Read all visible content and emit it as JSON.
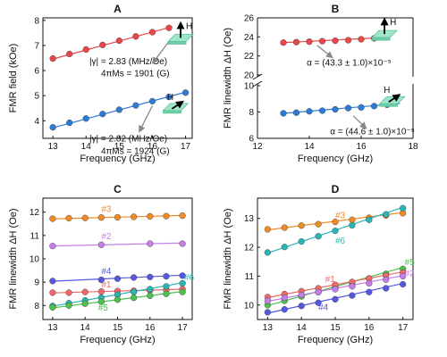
{
  "chart_data": [
    {
      "type": "line",
      "panel": "A",
      "title": "A",
      "xlabel": "Frequency (GHz)",
      "ylabel": "FMR field (kOe)",
      "xlim": [
        12.7,
        17.2
      ],
      "ylim": [
        3.3,
        8.1
      ],
      "xticks": [
        13,
        14,
        15,
        16,
        17
      ],
      "yticks": [
        4,
        5,
        6,
        7,
        8
      ],
      "grid": false,
      "series": [
        {
          "color": "#e8474a",
          "x": [
            13.0,
            13.5,
            14.0,
            14.5,
            15.0,
            15.5,
            16.0,
            16.5
          ],
          "y": [
            6.48,
            6.66,
            6.84,
            7.02,
            7.19,
            7.36,
            7.53,
            7.7
          ],
          "fit": [
            [
              13.0,
              6.46
            ],
            [
              16.6,
              7.75
            ]
          ]
        },
        {
          "color": "#2e7bd6",
          "x": [
            13.0,
            13.5,
            14.0,
            14.5,
            15.0,
            15.5,
            16.0,
            16.5,
            17.0
          ],
          "y": [
            3.74,
            3.92,
            4.09,
            4.27,
            4.44,
            4.61,
            4.78,
            4.95,
            5.12
          ],
          "fit": [
            [
              13.0,
              3.72
            ],
            [
              17.0,
              5.14
            ]
          ]
        }
      ],
      "annotations": [
        {
          "kind": "text",
          "text": "|γ| = 2.83 (MHz/Oe)",
          "at": [
            14.1,
            6.26
          ]
        },
        {
          "kind": "text",
          "text": "4πMs = 1901 (G)",
          "at": [
            14.45,
            5.78
          ]
        },
        {
          "kind": "text",
          "text": "|γ| = 2.82 (MHz/Oe)",
          "at": [
            14.1,
            3.18
          ]
        },
        {
          "kind": "text",
          "text": "4πMs = 1924 (G)",
          "at": [
            14.45,
            2.68
          ]
        },
        {
          "kind": "arrow",
          "from": [
            16.55,
            7.25
          ],
          "to": [
            16.0,
            6.28
          ],
          "color": "#888888"
        },
        {
          "kind": "arrow",
          "from": [
            16.0,
            4.6
          ],
          "to": [
            15.6,
            3.55
          ],
          "color": "#888888"
        },
        {
          "kind": "slab",
          "at": [
            16.85,
            7.3
          ],
          "arrow": "up",
          "label": "H"
        },
        {
          "kind": "slab",
          "at": [
            16.7,
            4.55
          ],
          "arrow": "diag",
          "label": "H"
        }
      ]
    },
    {
      "type": "line",
      "panel": "B",
      "title": "B",
      "xlabel": "Frequency (GHz)",
      "ylabel": "FMR linewidth ΔH (Oe)",
      "xlim": [
        12.0,
        18.0
      ],
      "broken_y_axis": true,
      "upper": {
        "ylim": [
          20,
          26
        ],
        "yticks": [
          20,
          22,
          24,
          26
        ]
      },
      "lower": {
        "ylim": [
          6,
          10
        ],
        "yticks": [
          6,
          8,
          10
        ]
      },
      "xticks": [
        12,
        14,
        16,
        18
      ],
      "grid": false,
      "series": [
        {
          "color": "#e8474a",
          "x": [
            13.0,
            13.5,
            14.0,
            14.5,
            15.0,
            15.5,
            16.0,
            16.5,
            17.0
          ],
          "y": [
            23.4,
            23.45,
            23.5,
            23.55,
            23.6,
            23.65,
            23.75,
            23.85,
            23.95
          ],
          "fit": [
            [
              13.0,
              23.4
            ],
            [
              17.0,
              23.95
            ]
          ]
        },
        {
          "color": "#2e7bd6",
          "x": [
            13.0,
            13.5,
            14.0,
            14.5,
            15.0,
            15.5,
            16.0,
            16.5,
            17.0
          ],
          "y": [
            7.9,
            7.95,
            8.05,
            8.1,
            8.2,
            8.3,
            8.35,
            8.45,
            8.55
          ],
          "fit": [
            [
              13.0,
              7.9
            ],
            [
              17.5,
              8.65
            ]
          ]
        }
      ],
      "annotations": [
        {
          "kind": "text",
          "text": "α = (43.3 ± 1.0)×10⁻⁵",
          "at": [
            13.9,
            21.0
          ]
        },
        {
          "kind": "text",
          "text": "α = (44.6 ± 1.0)×10⁻⁵",
          "at": [
            14.8,
            6.3
          ]
        },
        {
          "kind": "arrow",
          "from": [
            14.3,
            23.1
          ],
          "to": [
            14.9,
            21.8
          ],
          "color": "#888888"
        },
        {
          "kind": "arrow",
          "from": [
            15.7,
            7.7
          ],
          "to": [
            16.2,
            6.75
          ],
          "color": "#888888"
        },
        {
          "kind": "slab",
          "at": [
            16.9,
            24.3
          ],
          "arrow": "up",
          "label": "H"
        },
        {
          "kind": "slab",
          "at": [
            17.2,
            8.9
          ],
          "arrow": "diag",
          "label": "H"
        }
      ]
    },
    {
      "type": "line",
      "panel": "C",
      "title": "C",
      "xlabel": "Frequency (GHz)",
      "ylabel": "FMR linewidth ΔH (Oe)",
      "xlim": [
        12.7,
        17.3
      ],
      "ylim": [
        7.4,
        12.6
      ],
      "xticks": [
        13,
        14,
        15,
        16,
        17
      ],
      "yticks": [
        8,
        9,
        10,
        11,
        12
      ],
      "grid": false,
      "series": [
        {
          "name": "#3",
          "color": "#f08a24",
          "x": [
            13.0,
            13.5,
            14.0,
            14.5,
            15.0,
            15.5,
            16.0,
            16.5,
            17.0
          ],
          "y": [
            11.72,
            11.74,
            11.75,
            11.77,
            11.78,
            11.8,
            11.82,
            11.83,
            11.85
          ],
          "fit": [
            [
              13.0,
              11.71
            ],
            [
              17.0,
              11.86
            ]
          ],
          "label_at": [
            14.5,
            12.0
          ]
        },
        {
          "name": "#2",
          "color": "#c57ee8",
          "x": [
            13.0,
            14.5,
            16.0,
            17.0
          ],
          "y": [
            10.55,
            10.6,
            10.65,
            10.65
          ],
          "fit": [
            [
              13.0,
              10.55
            ],
            [
              17.0,
              10.68
            ]
          ],
          "label_at": [
            14.5,
            10.85
          ]
        },
        {
          "name": "#4",
          "color": "#5558e0",
          "x": [
            13.0,
            14.5,
            15.0,
            15.5,
            16.0,
            16.5,
            17.0
          ],
          "y": [
            9.05,
            9.1,
            9.15,
            9.2,
            9.22,
            9.25,
            9.28
          ],
          "fit": [
            [
              13.0,
              9.04
            ],
            [
              17.0,
              9.3
            ]
          ],
          "label_at": [
            14.5,
            9.35
          ]
        },
        {
          "name": "#1",
          "color": "#f06a6a",
          "x": [
            13.0,
            13.5,
            14.0,
            14.5,
            15.0,
            15.5,
            16.0,
            16.5,
            17.0
          ],
          "y": [
            8.55,
            8.55,
            8.58,
            8.6,
            8.62,
            8.63,
            8.65,
            8.67,
            8.7
          ],
          "fit": [
            [
              13.0,
              8.54
            ],
            [
              17.0,
              8.7
            ]
          ],
          "label_at": [
            14.5,
            8.78
          ]
        },
        {
          "name": "#6",
          "color": "#2bb5b5",
          "x": [
            13.0,
            13.5,
            14.0,
            14.5,
            15.0,
            15.5,
            16.0,
            16.5,
            17.0
          ],
          "y": [
            7.98,
            8.1,
            8.22,
            8.34,
            8.46,
            8.58,
            8.7,
            8.82,
            8.95
          ],
          "fit": [
            [
              13.0,
              7.97
            ],
            [
              17.1,
              9.0
            ]
          ],
          "label_at": [
            17.05,
            9.08
          ]
        },
        {
          "name": "#5",
          "color": "#4cc24c",
          "x": [
            13.0,
            13.5,
            14.0,
            14.5,
            15.0,
            15.5,
            16.0,
            16.5,
            17.0
          ],
          "y": [
            7.92,
            8.0,
            8.08,
            8.16,
            8.25,
            8.33,
            8.42,
            8.5,
            8.58
          ],
          "fit": [
            [
              13.0,
              7.9
            ],
            [
              17.0,
              8.6
            ]
          ],
          "label_at": [
            14.4,
            7.78
          ]
        }
      ]
    },
    {
      "type": "line",
      "panel": "D",
      "title": "D",
      "xlabel": "Frequency (GHz)",
      "ylabel": "FMR linewidth ΔH (Oe)",
      "xlim": [
        12.7,
        17.3
      ],
      "ylim": [
        9.5,
        13.7
      ],
      "xticks": [
        13,
        14,
        15,
        16,
        17
      ],
      "yticks": [
        10,
        11,
        12,
        13
      ],
      "grid": false,
      "series": [
        {
          "name": "#3",
          "color": "#f08a24",
          "x": [
            13.0,
            13.5,
            14.0,
            14.5,
            15.0,
            15.5,
            16.0,
            16.5,
            17.0
          ],
          "y": [
            12.62,
            12.68,
            12.75,
            12.8,
            12.88,
            12.95,
            13.02,
            13.1,
            13.18
          ],
          "fit": [
            [
              13.0,
              12.6
            ],
            [
              17.0,
              13.2
            ]
          ],
          "label_at": [
            15.0,
            13.0
          ]
        },
        {
          "name": "#6",
          "color": "#2bb5b5",
          "x": [
            13.0,
            13.5,
            14.0,
            14.5,
            15.0,
            15.5,
            16.0,
            16.5,
            17.0
          ],
          "y": [
            11.82,
            12.01,
            12.2,
            12.38,
            12.57,
            12.76,
            12.95,
            13.14,
            13.35
          ],
          "fit": [
            [
              13.0,
              11.8
            ],
            [
              17.0,
              13.38
            ]
          ],
          "label_at": [
            15.0,
            12.12
          ]
        },
        {
          "name": "#5",
          "color": "#4cc24c",
          "x": [
            13.0,
            13.5,
            14.0,
            14.5,
            15.0,
            15.5,
            16.0,
            16.5,
            17.0
          ],
          "y": [
            10.0,
            10.15,
            10.3,
            10.45,
            10.6,
            10.75,
            10.92,
            11.08,
            11.25
          ],
          "fit": [
            [
              13.0,
              9.98
            ],
            [
              17.0,
              11.3
            ]
          ],
          "label_at": [
            17.05,
            11.38
          ]
        },
        {
          "name": "#1",
          "color": "#f06a6a",
          "x": [
            13.0,
            13.5,
            14.0,
            14.5,
            15.0,
            15.5,
            16.0,
            16.5,
            17.0
          ],
          "y": [
            10.28,
            10.38,
            10.48,
            10.58,
            10.7,
            10.8,
            10.92,
            11.02,
            11.12
          ],
          "fit": [
            [
              13.0,
              10.26
            ],
            [
              17.0,
              11.15
            ]
          ],
          "label_at": [
            14.7,
            10.8
          ]
        },
        {
          "name": "#2",
          "color": "#c57ee8",
          "x": [
            13.0,
            13.5,
            14.0,
            14.5,
            15.0,
            15.5,
            16.0,
            16.5,
            17.0
          ],
          "y": [
            10.15,
            10.25,
            10.35,
            10.45,
            10.55,
            10.65,
            10.75,
            10.88,
            11.0
          ],
          "fit": [
            [
              13.0,
              10.13
            ],
            [
              17.0,
              11.02
            ]
          ],
          "label_at": [
            17.05,
            11.0
          ]
        },
        {
          "name": "#4",
          "color": "#5558e0",
          "x": [
            13.0,
            13.5,
            14.0,
            14.5,
            15.0,
            15.5,
            16.0,
            16.5,
            17.0
          ],
          "y": [
            9.75,
            9.85,
            9.97,
            10.08,
            10.2,
            10.33,
            10.45,
            10.58,
            10.72
          ],
          "fit": [
            [
              13.0,
              9.72
            ],
            [
              17.0,
              10.75
            ]
          ],
          "label_at": [
            14.5,
            9.82
          ]
        }
      ]
    }
  ]
}
